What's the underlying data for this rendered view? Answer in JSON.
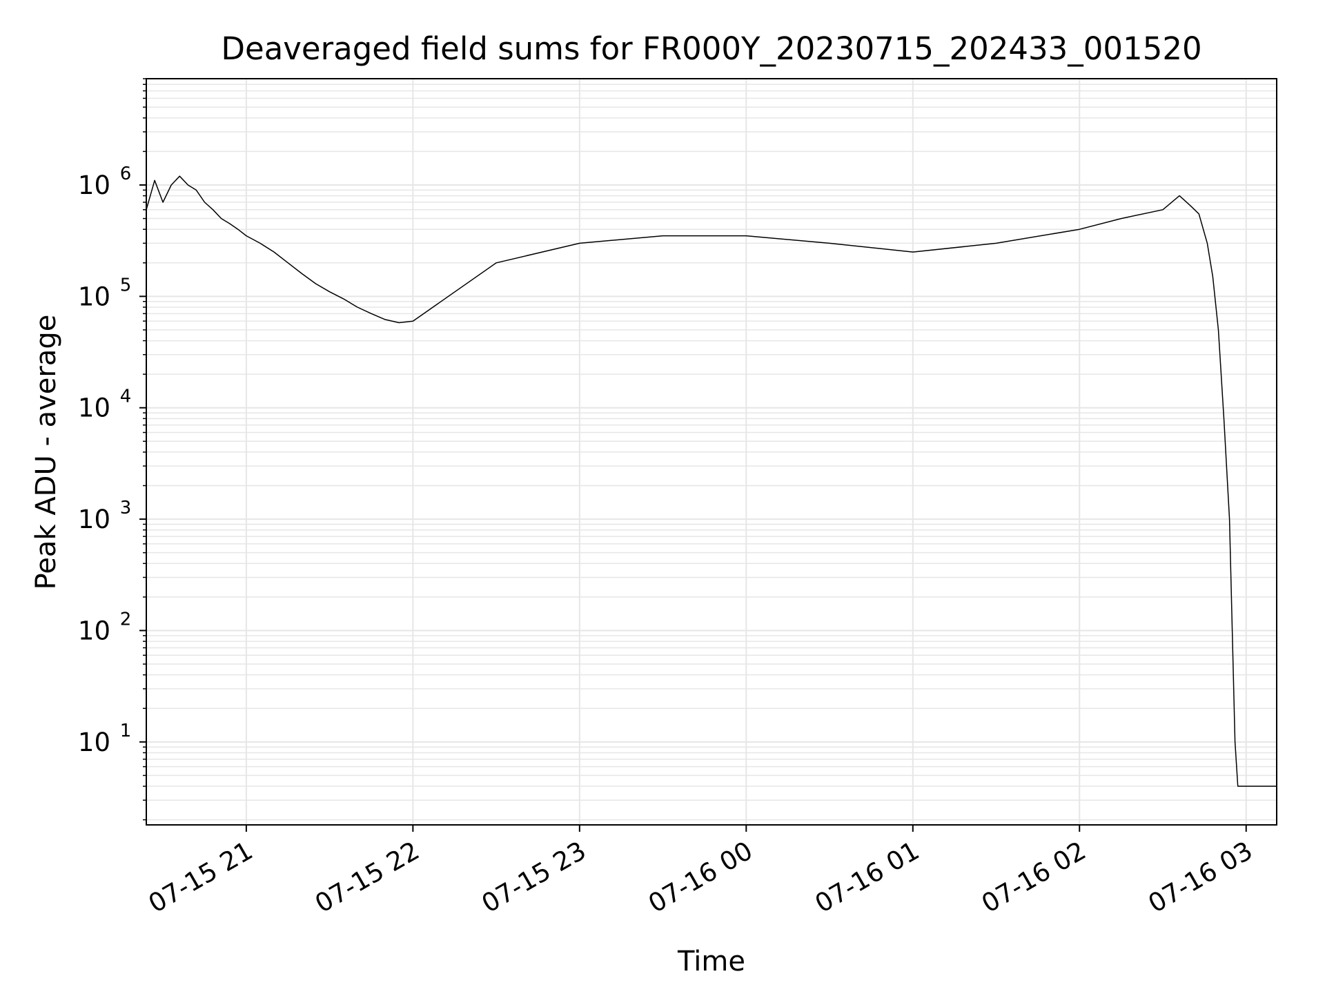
{
  "chart_data": {
    "type": "line",
    "title": "Deaveraged field sums for FR000Y_20230715_202433_001520",
    "xlabel": "Time",
    "ylabel": "Peak ADU - average",
    "y_scale": "log",
    "grid": true,
    "line_color": "#000000",
    "grid_color": "#e6e6e6",
    "xlim": [
      "2023-07-15 20:24",
      "2023-07-16 03:11"
    ],
    "ylim": [
      1.8,
      9000000
    ],
    "x_ticks": [
      {
        "t": "2023-07-15 21:00",
        "label": "07-15 21"
      },
      {
        "t": "2023-07-15 22:00",
        "label": "07-15 22"
      },
      {
        "t": "2023-07-15 23:00",
        "label": "07-15 23"
      },
      {
        "t": "2023-07-16 00:00",
        "label": "07-16 00"
      },
      {
        "t": "2023-07-16 01:00",
        "label": "07-16 01"
      },
      {
        "t": "2023-07-16 02:00",
        "label": "07-16 02"
      },
      {
        "t": "2023-07-16 03:00",
        "label": "07-16 03"
      }
    ],
    "y_ticks": [
      {
        "v": 10,
        "base": "10",
        "exp": "1"
      },
      {
        "v": 100,
        "base": "10",
        "exp": "2"
      },
      {
        "v": 1000,
        "base": "10",
        "exp": "3"
      },
      {
        "v": 10000,
        "base": "10",
        "exp": "4"
      },
      {
        "v": 100000,
        "base": "10",
        "exp": "5"
      },
      {
        "v": 1000000,
        "base": "10",
        "exp": "6"
      }
    ],
    "series": [
      {
        "points": [
          [
            "2023-07-15 20:24",
            600000
          ],
          [
            "2023-07-15 20:27",
            1100000
          ],
          [
            "2023-07-15 20:30",
            700000
          ],
          [
            "2023-07-15 20:33",
            1000000
          ],
          [
            "2023-07-15 20:36",
            1200000
          ],
          [
            "2023-07-15 20:39",
            1000000
          ],
          [
            "2023-07-15 20:42",
            900000
          ],
          [
            "2023-07-15 20:45",
            700000
          ],
          [
            "2023-07-15 20:48",
            600000
          ],
          [
            "2023-07-15 20:51",
            500000
          ],
          [
            "2023-07-15 20:54",
            450000
          ],
          [
            "2023-07-15 20:57",
            400000
          ],
          [
            "2023-07-15 21:00",
            350000
          ],
          [
            "2023-07-15 21:05",
            300000
          ],
          [
            "2023-07-15 21:10",
            250000
          ],
          [
            "2023-07-15 21:15",
            200000
          ],
          [
            "2023-07-15 21:20",
            160000
          ],
          [
            "2023-07-15 21:25",
            130000
          ],
          [
            "2023-07-15 21:30",
            110000
          ],
          [
            "2023-07-15 21:35",
            95000
          ],
          [
            "2023-07-15 21:40",
            80000
          ],
          [
            "2023-07-15 21:45",
            70000
          ],
          [
            "2023-07-15 21:50",
            62000
          ],
          [
            "2023-07-15 21:55",
            58000
          ],
          [
            "2023-07-15 22:00",
            60000
          ],
          [
            "2023-07-15 22:30",
            200000
          ],
          [
            "2023-07-15 23:00",
            300000
          ],
          [
            "2023-07-15 23:30",
            350000
          ],
          [
            "2023-07-16 00:00",
            350000
          ],
          [
            "2023-07-16 00:30",
            300000
          ],
          [
            "2023-07-16 01:00",
            250000
          ],
          [
            "2023-07-16 01:30",
            300000
          ],
          [
            "2023-07-16 02:00",
            400000
          ],
          [
            "2023-07-16 02:15",
            500000
          ],
          [
            "2023-07-16 02:30",
            600000
          ],
          [
            "2023-07-16 02:36",
            800000
          ],
          [
            "2023-07-16 02:40",
            650000
          ],
          [
            "2023-07-16 02:43",
            550000
          ],
          [
            "2023-07-16 02:46",
            300000
          ],
          [
            "2023-07-16 02:48",
            150000
          ],
          [
            "2023-07-16 02:50",
            50000
          ],
          [
            "2023-07-16 02:52",
            8000
          ],
          [
            "2023-07-16 02:54",
            1000
          ],
          [
            "2023-07-16 02:55",
            100
          ],
          [
            "2023-07-16 02:56",
            10
          ],
          [
            "2023-07-16 02:57",
            4
          ],
          [
            "2023-07-16 03:11",
            4
          ]
        ]
      }
    ]
  }
}
